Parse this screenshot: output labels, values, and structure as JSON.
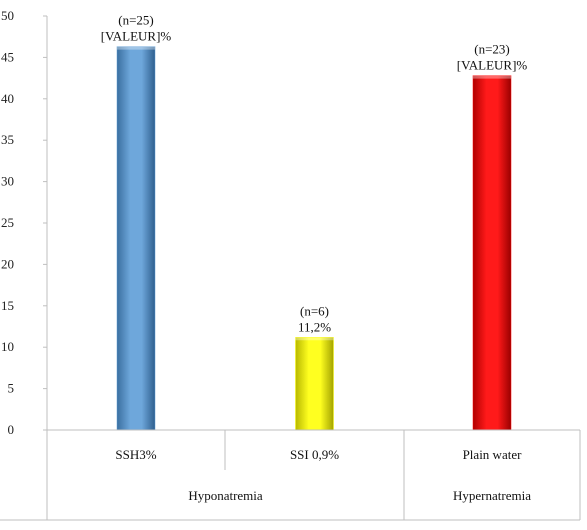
{
  "chart_data": {
    "type": "bar",
    "categories": [
      "SSH3%",
      "SSI 0,9%",
      "Plain water"
    ],
    "groups": [
      {
        "label": "Hyponatremia",
        "categories": [
          "SSH3%",
          "SSI 0,9%"
        ]
      },
      {
        "label": "Hypernatremia",
        "categories": [
          "Plain water"
        ]
      }
    ],
    "values": [
      46.3,
      11.2,
      42.8
    ],
    "data_labels": [
      [
        "(n=25)",
        "[VALEUR]%"
      ],
      [
        "(n=6)",
        "11,2%"
      ],
      [
        "(n=23)",
        "[VALEUR]%"
      ]
    ],
    "bar_colors": [
      "#5b9bd5",
      "#ffff00",
      "#ff0000"
    ],
    "ylim": [
      0,
      50
    ],
    "yticks": [
      0,
      5,
      10,
      15,
      20,
      25,
      30,
      35,
      40,
      45,
      50
    ],
    "grid": false,
    "legend": "none",
    "title": "",
    "xlabel": "",
    "ylabel": ""
  }
}
